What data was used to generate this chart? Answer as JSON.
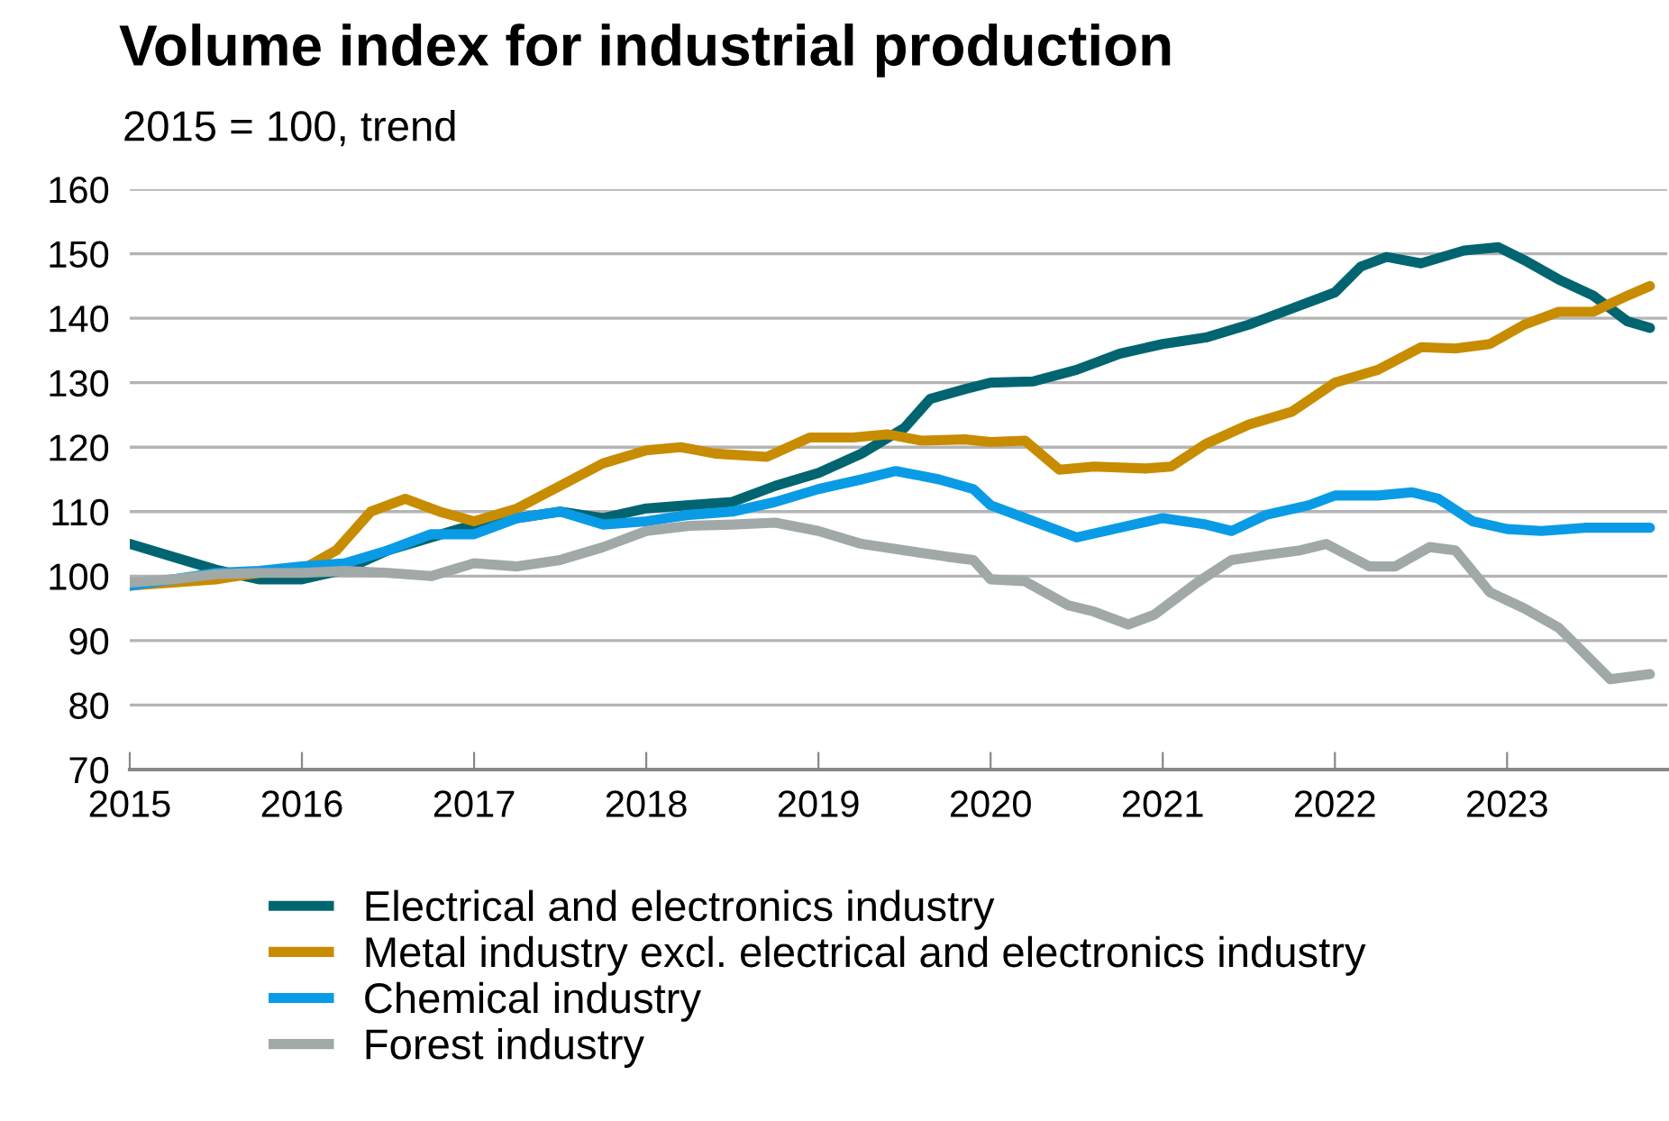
{
  "chart_data": {
    "type": "line",
    "title": "Volume index for industrial production",
    "subtitle": "2015 = 100, trend",
    "xlim": [
      2015,
      2023.93
    ],
    "xticks": [
      2015,
      2016,
      2017,
      2018,
      2019,
      2020,
      2021,
      2022,
      2023
    ],
    "ylim": [
      70,
      160
    ],
    "yticks": [
      70,
      80,
      90,
      100,
      110,
      120,
      130,
      140,
      150,
      160
    ],
    "grid": "y",
    "legend": "bottom",
    "marker": "none",
    "line_style": "solid",
    "series": [
      {
        "name": "Electrical and electronics industry",
        "color": "#006570",
        "x": [
          2015,
          2015.25,
          2015.5,
          2015.75,
          2016,
          2016.25,
          2016.5,
          2016.75,
          2017,
          2017.25,
          2017.5,
          2017.75,
          2018,
          2018.25,
          2018.5,
          2018.75,
          2019,
          2019.25,
          2019.5,
          2019.65,
          2019.85,
          2020,
          2020.25,
          2020.5,
          2020.75,
          2021,
          2021.25,
          2021.5,
          2021.75,
          2022,
          2022.15,
          2022.3,
          2022.5,
          2022.75,
          2022.95,
          2023.1,
          2023.3,
          2023.5,
          2023.7,
          2023.83
        ],
        "values": [
          105,
          103,
          101,
          99.5,
          99.5,
          101,
          104,
          106,
          108,
          109,
          110,
          109,
          110.5,
          111,
          111.5,
          114,
          116,
          119,
          123,
          127.5,
          129,
          130,
          130.2,
          132,
          134.5,
          136,
          137,
          139,
          141.5,
          144,
          148,
          149.5,
          148.5,
          150.5,
          151,
          149,
          146,
          143.5,
          139.5,
          138.5
        ]
      },
      {
        "name": "Metal industry excl. electrical and electronics industry",
        "color": "#c88c00",
        "x": [
          2015,
          2015.25,
          2015.5,
          2015.75,
          2016,
          2016.2,
          2016.4,
          2016.6,
          2016.8,
          2017,
          2017.25,
          2017.5,
          2017.75,
          2018,
          2018.2,
          2018.4,
          2018.7,
          2018.95,
          2019.2,
          2019.4,
          2019.6,
          2019.85,
          2020,
          2020.2,
          2020.4,
          2020.6,
          2020.9,
          2021.05,
          2021.25,
          2021.5,
          2021.75,
          2022,
          2022.25,
          2022.5,
          2022.7,
          2022.9,
          2023.1,
          2023.3,
          2023.5,
          2023.7,
          2023.83
        ],
        "values": [
          98.5,
          99,
          99.5,
          100.5,
          101,
          104,
          110,
          112,
          110,
          108.5,
          110.5,
          114,
          117.5,
          119.5,
          120,
          119,
          118.5,
          121.5,
          121.5,
          122,
          121,
          121.2,
          120.8,
          121,
          116.5,
          117,
          116.7,
          117,
          120.5,
          123.5,
          125.5,
          130,
          132,
          135.5,
          135.3,
          136,
          139,
          141,
          141,
          143.5,
          145
        ]
      },
      {
        "name": "Chemical industry",
        "color": "#0a9be6",
        "x": [
          2015,
          2015.25,
          2015.5,
          2015.75,
          2016,
          2016.25,
          2016.5,
          2016.75,
          2017,
          2017.25,
          2017.5,
          2017.75,
          2018,
          2018.25,
          2018.5,
          2018.75,
          2019,
          2019.25,
          2019.45,
          2019.7,
          2019.9,
          2020,
          2020.25,
          2020.5,
          2020.75,
          2021,
          2021.25,
          2021.4,
          2021.6,
          2021.85,
          2022,
          2022.25,
          2022.45,
          2022.6,
          2022.8,
          2023,
          2023.2,
          2023.45,
          2023.83
        ],
        "values": [
          98.5,
          99.5,
          100.5,
          100.8,
          101.5,
          102,
          104,
          106.5,
          106.5,
          109,
          110,
          108,
          108.5,
          109.5,
          110,
          111.5,
          113.5,
          115,
          116.3,
          115,
          113.5,
          111,
          108.5,
          106,
          107.5,
          109,
          108,
          107,
          109.5,
          111,
          112.5,
          112.5,
          113,
          112,
          108.5,
          107.3,
          107,
          107.5,
          107.5
        ]
      },
      {
        "name": "Forest industry",
        "color": "#a0a8a8",
        "x": [
          2015,
          2015.25,
          2015.5,
          2015.75,
          2016,
          2016.25,
          2016.5,
          2016.75,
          2017,
          2017.25,
          2017.5,
          2017.75,
          2018,
          2018.25,
          2018.5,
          2018.75,
          2019,
          2019.25,
          2019.5,
          2019.75,
          2019.9,
          2020,
          2020.2,
          2020.45,
          2020.6,
          2020.8,
          2020.95,
          2021.2,
          2021.4,
          2021.6,
          2021.8,
          2021.95,
          2022.2,
          2022.35,
          2022.55,
          2022.7,
          2022.9,
          2023.1,
          2023.3,
          2023.45,
          2023.6,
          2023.83
        ],
        "values": [
          99,
          99.5,
          100.3,
          100.5,
          100.5,
          100.8,
          100.5,
          100,
          102,
          101.5,
          102.5,
          104.5,
          107,
          107.8,
          108,
          108.3,
          107,
          105,
          104,
          103,
          102.5,
          99.5,
          99.2,
          95.5,
          94.5,
          92.5,
          94,
          99,
          102.5,
          103.3,
          104,
          105,
          101.5,
          101.5,
          104.5,
          104,
          97.5,
          95,
          92,
          88,
          84,
          84.8
        ]
      }
    ]
  }
}
